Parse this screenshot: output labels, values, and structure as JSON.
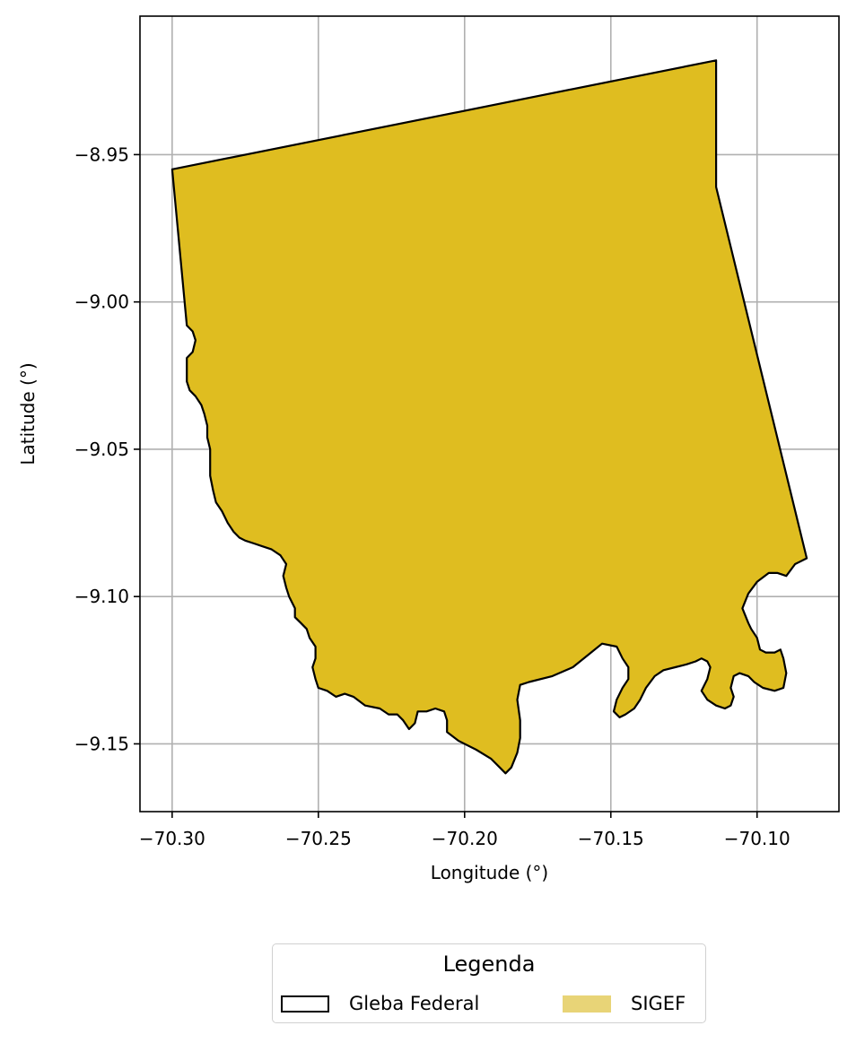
{
  "chart_data": {
    "type": "map",
    "xlabel": "Longitude (°)",
    "ylabel": "Latitude (°)",
    "xlim": [
      -70.311,
      -70.072
    ],
    "ylim": [
      -9.173,
      -8.903
    ],
    "grid": true,
    "x_ticks": [
      {
        "value": -70.3,
        "label": "−70.30"
      },
      {
        "value": -70.25,
        "label": "−70.25"
      },
      {
        "value": -70.2,
        "label": "−70.20"
      },
      {
        "value": -70.15,
        "label": "−70.15"
      },
      {
        "value": -70.1,
        "label": "−70.10"
      }
    ],
    "y_ticks": [
      {
        "value": -8.95,
        "label": "−8.95"
      },
      {
        "value": -9.0,
        "label": "−9.00"
      },
      {
        "value": -9.05,
        "label": "−9.05"
      },
      {
        "value": -9.1,
        "label": "−9.10"
      },
      {
        "value": -9.15,
        "label": "−9.15"
      }
    ],
    "layers": [
      {
        "name": "Gleba Federal",
        "style": "outline",
        "edge_color": "#000000",
        "polygon": [
          [
            -70.3,
            -8.955
          ],
          [
            -70.114,
            -8.918
          ],
          [
            -70.114,
            -8.961
          ],
          [
            -70.083,
            -9.087
          ],
          [
            -70.087,
            -9.089
          ],
          [
            -70.09,
            -9.093
          ],
          [
            -70.093,
            -9.092
          ],
          [
            -70.096,
            -9.092
          ],
          [
            -70.1,
            -9.095
          ],
          [
            -70.103,
            -9.099
          ],
          [
            -70.105,
            -9.104
          ],
          [
            -70.103,
            -9.109
          ],
          [
            -70.102,
            -9.111
          ],
          [
            -70.1,
            -9.114
          ],
          [
            -70.099,
            -9.118
          ],
          [
            -70.097,
            -9.119
          ],
          [
            -70.094,
            -9.119
          ],
          [
            -70.092,
            -9.118
          ],
          [
            -70.091,
            -9.121
          ],
          [
            -70.09,
            -9.126
          ],
          [
            -70.091,
            -9.131
          ],
          [
            -70.094,
            -9.132
          ],
          [
            -70.098,
            -9.131
          ],
          [
            -70.101,
            -9.129
          ],
          [
            -70.103,
            -9.127
          ],
          [
            -70.106,
            -9.126
          ],
          [
            -70.108,
            -9.127
          ],
          [
            -70.109,
            -9.131
          ],
          [
            -70.108,
            -9.134
          ],
          [
            -70.109,
            -9.137
          ],
          [
            -70.111,
            -9.138
          ],
          [
            -70.114,
            -9.137
          ],
          [
            -70.117,
            -9.135
          ],
          [
            -70.119,
            -9.132
          ],
          [
            -70.117,
            -9.128
          ],
          [
            -70.116,
            -9.124
          ],
          [
            -70.117,
            -9.122
          ],
          [
            -70.119,
            -9.121
          ],
          [
            -70.121,
            -9.122
          ],
          [
            -70.124,
            -9.123
          ],
          [
            -70.128,
            -9.124
          ],
          [
            -70.132,
            -9.125
          ],
          [
            -70.135,
            -9.127
          ],
          [
            -70.138,
            -9.131
          ],
          [
            -70.14,
            -9.135
          ],
          [
            -70.142,
            -9.138
          ],
          [
            -70.145,
            -9.14
          ],
          [
            -70.147,
            -9.141
          ],
          [
            -70.149,
            -9.139
          ],
          [
            -70.148,
            -9.135
          ],
          [
            -70.146,
            -9.131
          ],
          [
            -70.144,
            -9.128
          ],
          [
            -70.144,
            -9.124
          ],
          [
            -70.146,
            -9.121
          ],
          [
            -70.148,
            -9.117
          ],
          [
            -70.153,
            -9.116
          ],
          [
            -70.158,
            -9.12
          ],
          [
            -70.163,
            -9.124
          ],
          [
            -70.17,
            -9.127
          ],
          [
            -70.178,
            -9.129
          ],
          [
            -70.181,
            -9.13
          ],
          [
            -70.182,
            -9.135
          ],
          [
            -70.181,
            -9.142
          ],
          [
            -70.181,
            -9.148
          ],
          [
            -70.182,
            -9.153
          ],
          [
            -70.184,
            -9.158
          ],
          [
            -70.186,
            -9.16
          ],
          [
            -70.188,
            -9.158
          ],
          [
            -70.191,
            -9.155
          ],
          [
            -70.196,
            -9.152
          ],
          [
            -70.202,
            -9.149
          ],
          [
            -70.206,
            -9.146
          ],
          [
            -70.206,
            -9.142
          ],
          [
            -70.207,
            -9.139
          ],
          [
            -70.21,
            -9.138
          ],
          [
            -70.213,
            -9.139
          ],
          [
            -70.216,
            -9.139
          ],
          [
            -70.217,
            -9.143
          ],
          [
            -70.219,
            -9.145
          ],
          [
            -70.221,
            -9.142
          ],
          [
            -70.223,
            -9.14
          ],
          [
            -70.226,
            -9.14
          ],
          [
            -70.229,
            -9.138
          ],
          [
            -70.234,
            -9.137
          ],
          [
            -70.238,
            -9.134
          ],
          [
            -70.241,
            -9.133
          ],
          [
            -70.244,
            -9.134
          ],
          [
            -70.247,
            -9.132
          ],
          [
            -70.25,
            -9.131
          ],
          [
            -70.251,
            -9.128
          ],
          [
            -70.252,
            -9.124
          ],
          [
            -70.251,
            -9.121
          ],
          [
            -70.251,
            -9.117
          ],
          [
            -70.253,
            -9.114
          ],
          [
            -70.254,
            -9.111
          ],
          [
            -70.256,
            -9.109
          ],
          [
            -70.258,
            -9.107
          ],
          [
            -70.258,
            -9.104
          ],
          [
            -70.26,
            -9.1
          ],
          [
            -70.261,
            -9.097
          ],
          [
            -70.262,
            -9.093
          ],
          [
            -70.261,
            -9.089
          ],
          [
            -70.263,
            -9.086
          ],
          [
            -70.266,
            -9.084
          ],
          [
            -70.269,
            -9.083
          ],
          [
            -70.272,
            -9.082
          ],
          [
            -70.275,
            -9.081
          ],
          [
            -70.277,
            -9.08
          ],
          [
            -70.279,
            -9.078
          ],
          [
            -70.281,
            -9.075
          ],
          [
            -70.283,
            -9.071
          ],
          [
            -70.285,
            -9.068
          ],
          [
            -70.286,
            -9.064
          ],
          [
            -70.287,
            -9.059
          ],
          [
            -70.287,
            -9.055
          ],
          [
            -70.287,
            -9.05
          ],
          [
            -70.288,
            -9.046
          ],
          [
            -70.288,
            -9.042
          ],
          [
            -70.289,
            -9.038
          ],
          [
            -70.29,
            -9.035
          ],
          [
            -70.292,
            -9.032
          ],
          [
            -70.294,
            -9.03
          ],
          [
            -70.295,
            -9.027
          ],
          [
            -70.295,
            -9.023
          ],
          [
            -70.295,
            -9.019
          ],
          [
            -70.293,
            -9.017
          ],
          [
            -70.292,
            -9.013
          ],
          [
            -70.293,
            -9.01
          ],
          [
            -70.295,
            -9.008
          ],
          [
            -70.3,
            -8.955
          ]
        ]
      },
      {
        "name": "SIGEF",
        "style": "fill",
        "fill_color": "#dfbd20",
        "legend_swatch_color": "#e8d477",
        "polygon": "same as Gleba Federal"
      }
    ],
    "legend": {
      "title": "Legenda",
      "placement": "bottom-center",
      "entries": [
        "Gleba Federal",
        "SIGEF"
      ]
    }
  },
  "legend": {
    "title": "Legenda",
    "items": [
      {
        "label": "Gleba Federal"
      },
      {
        "label": "SIGEF"
      }
    ]
  }
}
